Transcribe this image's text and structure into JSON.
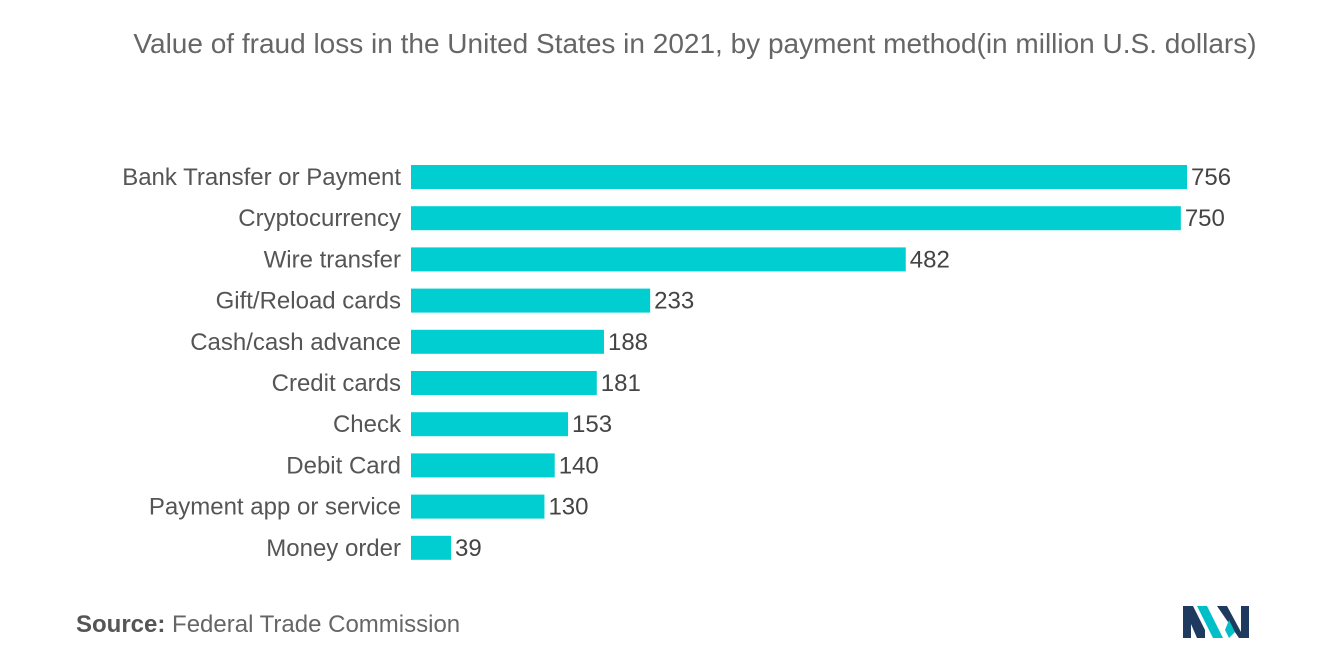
{
  "chart_data": {
    "type": "bar",
    "orientation": "horizontal",
    "title": "Value of fraud loss in the United States in 2021, by payment method(in million U.S. dollars)",
    "categories": [
      "Bank Transfer or Payment",
      "Cryptocurrency",
      "Wire transfer",
      "Gift/Reload cards",
      "Cash/cash advance",
      "Credit cards",
      "Check",
      "Debit Card",
      "Payment app or service",
      "Money order"
    ],
    "values": [
      756,
      750,
      482,
      233,
      188,
      181,
      153,
      140,
      130,
      39
    ],
    "xlim": [
      0,
      756
    ],
    "grid": false,
    "legend": "none",
    "bar_color": "#00CED1"
  },
  "source": {
    "label": "Source:",
    "text": "Federal Trade Commission"
  },
  "logo": {
    "icon": "mordor-intelligence-logo",
    "colors": [
      "#1E3A5F",
      "#00BFC8"
    ]
  }
}
